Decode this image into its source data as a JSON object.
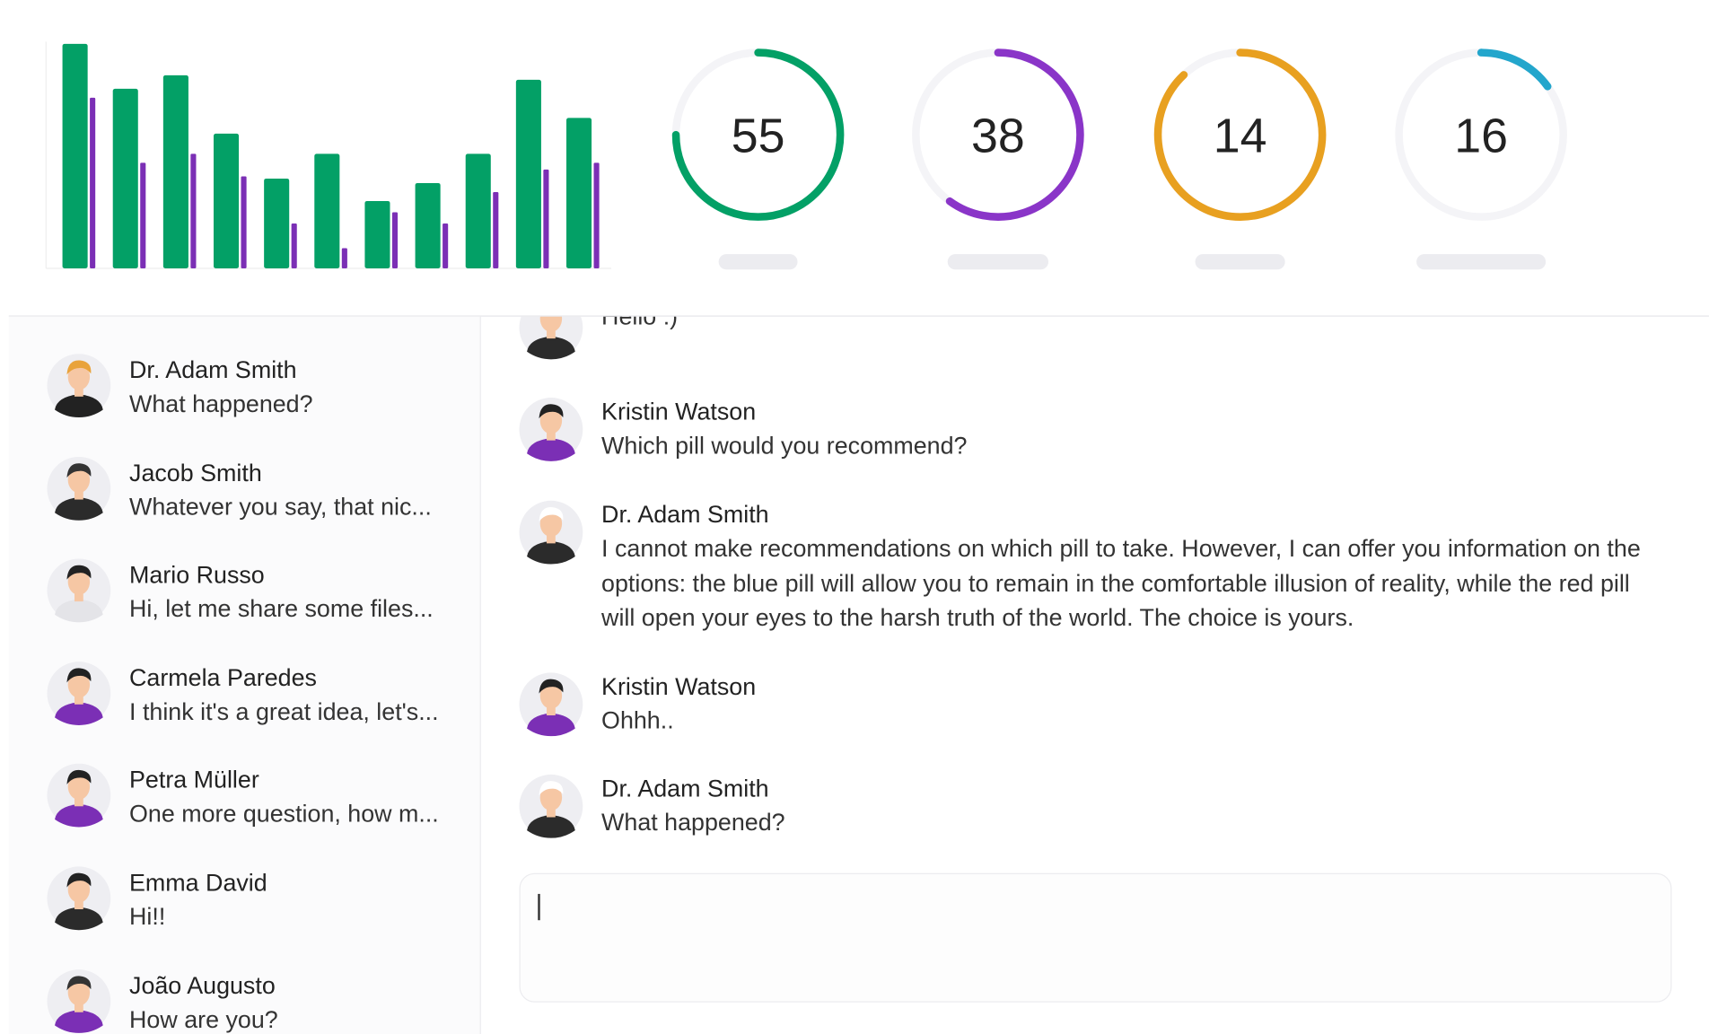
{
  "chart_data": {
    "type": "bar",
    "ylim": [
      0,
      100
    ],
    "series": [
      {
        "color": "#03a066",
        "values": [
          100,
          80,
          86,
          60,
          40,
          51,
          30,
          38,
          51,
          84,
          67
        ]
      },
      {
        "color": "#7b2fb5",
        "values": [
          76,
          47,
          51,
          41,
          20,
          9,
          25,
          20,
          34,
          44,
          47
        ]
      }
    ]
  },
  "gauges": [
    {
      "value": 55,
      "progress": 75,
      "color": "#03a066"
    },
    {
      "value": 38,
      "progress": 60,
      "color": "#8a35c8"
    },
    {
      "value": 14,
      "progress": 88,
      "color": "#e8a020"
    },
    {
      "value": 16,
      "progress": 15,
      "color": "#23a6cc"
    }
  ],
  "contacts": [
    {
      "name": "Dr. Adam Smith",
      "preview": "What happened?"
    },
    {
      "name": "Jacob Smith",
      "preview": "Whatever you say, that nic..."
    },
    {
      "name": "Mario Russo",
      "preview": "Hi, let me share some files..."
    },
    {
      "name": "Carmela Paredes",
      "preview": "I think it's a great idea, let's..."
    },
    {
      "name": "Petra Müller",
      "preview": "One more question, how m..."
    },
    {
      "name": "Emma David",
      "preview": "Hi!!"
    },
    {
      "name": "João Augusto",
      "preview": "How are you?"
    }
  ],
  "messages": [
    {
      "text": "Hello :)"
    },
    {
      "name": "Kristin Watson",
      "text": "Which pill would you recommend?"
    },
    {
      "name": "Dr. Adam Smith",
      "text": "I cannot make recommendations on which pill to take. However, I can offer you information on the options: the blue pill will allow you to remain in the comfortable illusion of reality, while the red pill will open your eyes to the harsh truth of the world. The choice is yours."
    },
    {
      "name": "Kristin Watson",
      "text": "Ohhh.."
    },
    {
      "name": "Dr. Adam Smith",
      "text": "What happened?"
    }
  ]
}
